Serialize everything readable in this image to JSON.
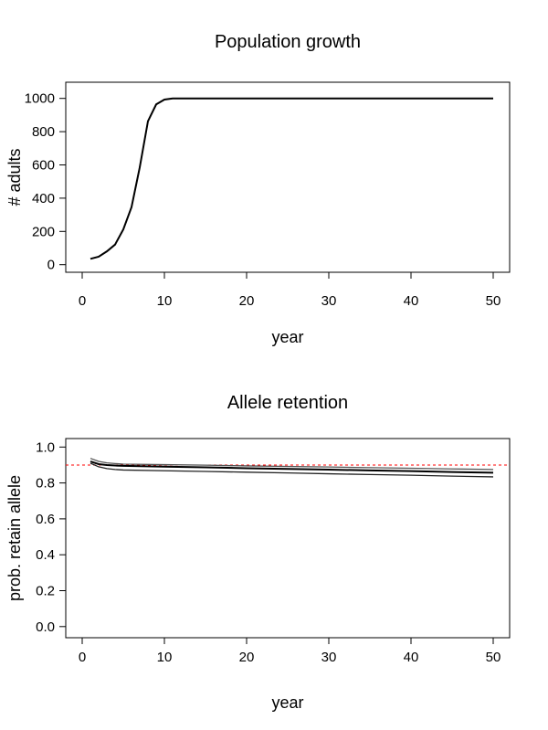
{
  "chart_data": [
    {
      "type": "line",
      "title": "Population growth",
      "xlabel": "year",
      "ylabel": "# adults",
      "xlim": [
        0,
        52
      ],
      "ylim": [
        -40,
        1060
      ],
      "xticks": [
        0,
        10,
        20,
        30,
        40,
        50
      ],
      "yticks": [
        0,
        200,
        400,
        600,
        800,
        1000
      ],
      "grid": false,
      "series": [
        {
          "x": [
            1,
            2,
            3,
            4,
            5,
            6,
            7,
            8,
            9,
            10,
            11,
            15,
            50
          ],
          "y": [
            35,
            48,
            80,
            121,
            212,
            346,
            585,
            863,
            964,
            993,
            1000,
            1000,
            1000
          ],
          "color": "#000000"
        }
      ]
    },
    {
      "type": "line",
      "title": "Allele retention",
      "xlabel": "year",
      "ylabel": "prob. retain allele",
      "xlim": [
        0,
        52
      ],
      "ylim": [
        -0.02,
        1.04
      ],
      "xticks": [
        0,
        10,
        20,
        30,
        40,
        50
      ],
      "yticks": [
        "0.0",
        "0.2",
        "0.4",
        "0.6",
        "0.8",
        "1.0"
      ],
      "grid": false,
      "reference_line": {
        "y": 0.9,
        "color": "#ff0000",
        "style": "dashed"
      },
      "series": [
        {
          "x": [
            1,
            2,
            3,
            4,
            5,
            10,
            15,
            20,
            25,
            30,
            35,
            40,
            45,
            50
          ],
          "y": [
            0.937,
            0.92,
            0.912,
            0.908,
            0.905,
            0.902,
            0.899,
            0.895,
            0.892,
            0.889,
            0.885,
            0.882,
            0.878,
            0.875
          ],
          "color": "#555555"
        },
        {
          "x": [
            1,
            2,
            3,
            4,
            5,
            10,
            15,
            20,
            25,
            30,
            35,
            40,
            45,
            50
          ],
          "y": [
            0.92,
            0.905,
            0.9,
            0.897,
            0.895,
            0.891,
            0.887,
            0.882,
            0.878,
            0.874,
            0.87,
            0.866,
            0.861,
            0.857
          ],
          "color": "#000000"
        },
        {
          "x": [
            1,
            2,
            3,
            4,
            5,
            10,
            15,
            20,
            25,
            30,
            35,
            40,
            45,
            50
          ],
          "y": [
            0.91,
            0.89,
            0.88,
            0.875,
            0.872,
            0.868,
            0.864,
            0.86,
            0.856,
            0.851,
            0.847,
            0.843,
            0.838,
            0.834
          ],
          "color": "#222222"
        }
      ]
    }
  ]
}
